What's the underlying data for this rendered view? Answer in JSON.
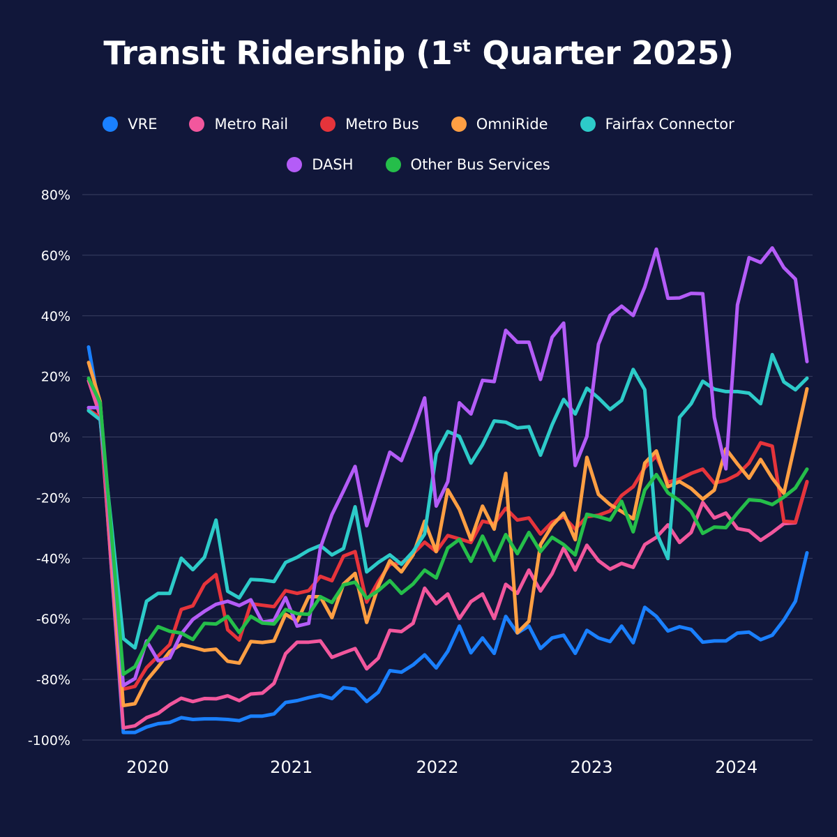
{
  "title": {
    "main": "Transit Ridership (1",
    "superscript": "st",
    "rest": " Quarter 2025)"
  },
  "chart_data": {
    "type": "line",
    "title": "Transit Ridership (1st Quarter 2025)",
    "xlabel": "",
    "ylabel": "",
    "ylim": [
      -100,
      80
    ],
    "yticks": [
      80,
      60,
      40,
      20,
      0,
      -20,
      -40,
      -60,
      -80,
      -100
    ],
    "ytick_labels": [
      "80%",
      "60%",
      "40%",
      "20%",
      "0%",
      "-20%",
      "-40%",
      "-60%",
      "-80%",
      "-100%"
    ],
    "x_count": 63,
    "xticks": [
      {
        "label": "2020",
        "at_index": 5.1
      },
      {
        "label": "2021",
        "at_index": 17.5
      },
      {
        "label": "2022",
        "at_index": 30.1
      },
      {
        "label": "2023",
        "at_index": 43.4
      },
      {
        "label": "2024",
        "at_index": 55.9
      }
    ],
    "grid": true,
    "legend_position": "top-center",
    "series": [
      {
        "name": "VRE",
        "color": "#1a80ff",
        "values": [
          29.7,
          8,
          -44.7,
          -97.5,
          -97.5,
          -95.7,
          -94.6,
          -94.2,
          -92.6,
          -93.2,
          -93,
          -93,
          -93.2,
          -93.6,
          -92.1,
          -92.1,
          -91.4,
          -87.6,
          -87,
          -86,
          -85.2,
          -86.3,
          -82.7,
          -83.2,
          -87.3,
          -84.2,
          -77.1,
          -77.6,
          -75.2,
          -71.9,
          -76.2,
          -70.7,
          -62.4,
          -71.2,
          -66.3,
          -71.4,
          -59.2,
          -64.7,
          -62.4,
          -69.8,
          -66.3,
          -65.4,
          -71.4,
          -63.8,
          -66.3,
          -67.5,
          -62.4,
          -67.9,
          -56.2,
          -59.2,
          -64,
          -62.6,
          -63.5,
          -67.7,
          -67.3,
          -67.3,
          -64.7,
          -64.4,
          -66.9,
          -65.4,
          -60.4,
          -54.2,
          -38.2
        ]
      },
      {
        "name": "Metro Rail",
        "color": "#f2579d",
        "values": [
          18.6,
          7,
          -44.5,
          -96,
          -95.3,
          -92.6,
          -91.2,
          -88.4,
          -86.2,
          -87.3,
          -86.3,
          -86.4,
          -85.4,
          -87,
          -84.8,
          -84.5,
          -81.3,
          -71.5,
          -67.7,
          -67.7,
          -67.3,
          -72.7,
          -71.2,
          -69.8,
          -76.5,
          -73,
          -63.8,
          -64.2,
          -61.5,
          -49.9,
          -55,
          -51.8,
          -59.9,
          -54.3,
          -51.8,
          -59.9,
          -48.6,
          -51.6,
          -43.9,
          -50.8,
          -45.1,
          -36.6,
          -43.9,
          -35.7,
          -40.8,
          -43.6,
          -41.7,
          -43,
          -35.5,
          -33.1,
          -29,
          -34.8,
          -31.5,
          -21.6,
          -26.7,
          -25.1,
          -30.2,
          -30.9,
          -34.1,
          -31.5,
          -28.6,
          -28.3,
          -14.8
        ]
      },
      {
        "name": "Metro Bus",
        "color": "#e6343b",
        "values": [
          9,
          6.5,
          -38,
          -83.2,
          -82.3,
          -76.1,
          -72.3,
          -68.5,
          -56.9,
          -55.7,
          -48.6,
          -45.4,
          -63.6,
          -67,
          -55,
          -55.5,
          -56,
          -50.7,
          -51.6,
          -50.7,
          -46,
          -47.4,
          -39.3,
          -37.8,
          -54.5,
          -47.7,
          -42,
          -41.6,
          -38.5,
          -34.7,
          -37.8,
          -32.5,
          -33.6,
          -34.8,
          -27.8,
          -28.6,
          -23.5,
          -27.4,
          -26.7,
          -32,
          -28.1,
          -26.3,
          -30.4,
          -26.3,
          -25.8,
          -24.4,
          -19.3,
          -16.4,
          -10.1,
          -6.3,
          -14.9,
          -13.9,
          -12,
          -10.6,
          -15.2,
          -14.3,
          -12.4,
          -8.6,
          -1.9,
          -3,
          -27.8,
          -28.1,
          -14.7
        ]
      },
      {
        "name": "OmniRide",
        "color": "#ff9f43",
        "values": [
          24.6,
          11.7,
          -38,
          -88.6,
          -88,
          -80.4,
          -75.8,
          -70.8,
          -68.5,
          -69.4,
          -70.4,
          -70,
          -74,
          -74.6,
          -67.5,
          -67.8,
          -67.3,
          -58.5,
          -60.8,
          -52.7,
          -52.7,
          -59.6,
          -48.5,
          -45,
          -61.2,
          -49.3,
          -40.8,
          -44.5,
          -38.9,
          -27.8,
          -37.8,
          -17.4,
          -23.9,
          -33.9,
          -22.8,
          -30.4,
          -12,
          -64.6,
          -60.8,
          -35.5,
          -29.3,
          -25.1,
          -33.9,
          -6.7,
          -18.9,
          -22.3,
          -24.6,
          -27,
          -8.6,
          -4.6,
          -16.4,
          -14.7,
          -17,
          -20.5,
          -17.5,
          -3.9,
          -8.9,
          -13.6,
          -7.4,
          -13.6,
          -18.6,
          -1.6,
          15.9
        ]
      },
      {
        "name": "Fairfax Connector",
        "color": "#2dcbc9",
        "values": [
          8.7,
          5.7,
          -30,
          -66.5,
          -69.6,
          -54.2,
          -51.6,
          -51.6,
          -40,
          -43.8,
          -39.7,
          -27.4,
          -50.9,
          -53.1,
          -47,
          -47.2,
          -47.7,
          -41.4,
          -39.7,
          -37.4,
          -35.8,
          -38.9,
          -36.8,
          -23,
          -44.5,
          -41.4,
          -38.9,
          -42,
          -37.8,
          -32,
          -5.5,
          1.8,
          0.2,
          -8.6,
          -2.5,
          5.3,
          4.9,
          3,
          3.4,
          -6,
          4,
          12.4,
          7.6,
          16.1,
          12.9,
          9.1,
          12.1,
          22.3,
          15.6,
          -31.5,
          -40.1,
          6.5,
          11,
          18.4,
          15.8,
          15,
          15,
          14.5,
          11,
          27.2,
          18.2,
          15.6,
          19.4
        ]
      },
      {
        "name": "DASH",
        "color": "#b45cf7",
        "values": [
          9.7,
          9.7,
          -36,
          -82,
          -79.7,
          -67.3,
          -73.8,
          -72.9,
          -65,
          -60.2,
          -57.5,
          -55.2,
          -54.2,
          -55.6,
          -53.7,
          -61.1,
          -60.5,
          -53,
          -62.4,
          -61.5,
          -36.6,
          -25.6,
          -17.8,
          -9.7,
          -29.3,
          -17,
          -5,
          -7.8,
          2.1,
          12.9,
          -22.8,
          -14.7,
          11.3,
          7.6,
          18.7,
          18.3,
          35.2,
          31.3,
          31.3,
          19,
          32.9,
          37.6,
          -9.4,
          0.2,
          30.6,
          40.1,
          43.2,
          40.1,
          49.5,
          62,
          45.8,
          45.9,
          47.4,
          47.3,
          6.5,
          -10.5,
          43.6,
          59.2,
          57.6,
          62.4,
          55.9,
          52.1,
          24.9
        ]
      },
      {
        "name": "Other Bus Services",
        "color": "#25be4a",
        "values": [
          19.4,
          11.3,
          -33,
          -78.3,
          -75.8,
          -68.1,
          -62.6,
          -64.1,
          -64.7,
          -66.8,
          -61.5,
          -61.7,
          -59.2,
          -64.5,
          -59.2,
          -61.4,
          -61.7,
          -56.9,
          -58.3,
          -58.5,
          -52.7,
          -54.6,
          -48.8,
          -47.9,
          -53.2,
          -50.7,
          -47.4,
          -51.6,
          -48.5,
          -43.9,
          -46.5,
          -36.6,
          -33.8,
          -41,
          -32.7,
          -40.7,
          -32.2,
          -38.5,
          -31.5,
          -37.8,
          -33.1,
          -35.5,
          -38.9,
          -25.5,
          -26.3,
          -27.4,
          -21.2,
          -31.3,
          -17.5,
          -12.4,
          -18.4,
          -21,
          -24.6,
          -31.8,
          -29.7,
          -29.9,
          -25.1,
          -20.7,
          -21,
          -22.3,
          -19.8,
          -16.8,
          -10.6
        ]
      }
    ]
  },
  "legend": {
    "row1": [
      {
        "label": "VRE",
        "color": "#1a80ff"
      },
      {
        "label": "Metro Rail",
        "color": "#f2579d"
      },
      {
        "label": "Metro Bus",
        "color": "#e6343b"
      },
      {
        "label": "OmniRide",
        "color": "#ff9f43"
      },
      {
        "label": "Fairfax Connector",
        "color": "#2dcbc9"
      }
    ],
    "row2": [
      {
        "label": "DASH",
        "color": "#b45cf7"
      },
      {
        "label": "Other Bus Services",
        "color": "#25be4a"
      }
    ]
  }
}
